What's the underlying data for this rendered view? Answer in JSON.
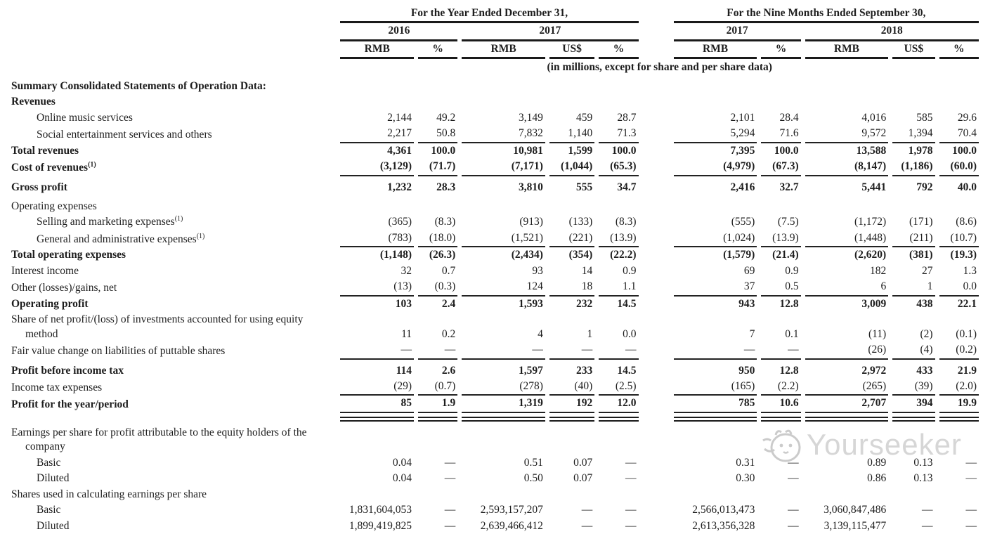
{
  "table": {
    "header": {
      "period_groups": [
        {
          "label": "For the Year Ended December 31,",
          "years": [
            {
              "label": "2016",
              "cols": [
                "RMB",
                "%"
              ]
            },
            {
              "label": "2017",
              "cols": [
                "RMB",
                "US$",
                "%"
              ]
            }
          ]
        },
        {
          "label": "For the Nine Months Ended September 30,",
          "years": [
            {
              "label": "2017",
              "cols": [
                "RMB",
                "%"
              ]
            },
            {
              "label": "2018",
              "cols": [
                "RMB",
                "US$",
                "%"
              ]
            }
          ]
        }
      ],
      "note": "(in millions, except for share and per share data)"
    },
    "rows": [
      {
        "id": "summary-title",
        "label": "Summary Consolidated Statements of Operation Data:",
        "bold": true,
        "values": []
      },
      {
        "id": "revenues-heading",
        "label": "Revenues",
        "bold": true,
        "values": []
      },
      {
        "id": "online-music-services",
        "label": "Online music services",
        "indent": true,
        "values": [
          "2,144",
          "49.2",
          "3,149",
          "459",
          "28.7",
          "2,101",
          "28.4",
          "4,016",
          "585",
          "29.6"
        ]
      },
      {
        "id": "social-entertainment-services",
        "label": "Social entertainment services and others",
        "indent": true,
        "rule": "single",
        "values": [
          "2,217",
          "50.8",
          "7,832",
          "1,140",
          "71.3",
          "5,294",
          "71.6",
          "9,572",
          "1,394",
          "70.4"
        ]
      },
      {
        "id": "total-revenues",
        "label": "Total revenues",
        "bold": true,
        "values": [
          "4,361",
          "100.0",
          "10,981",
          "1,599",
          "100.0",
          "7,395",
          "100.0",
          "13,588",
          "1,978",
          "100.0"
        ]
      },
      {
        "id": "cost-of-revenues",
        "label": "Cost of revenues",
        "sup": "(1)",
        "bold": true,
        "rule": "single",
        "values": [
          "(3,129)",
          "(71.7)",
          "(7,171)",
          "(1,044)",
          "(65.3)",
          "(4,979)",
          "(67.3)",
          "(8,147)",
          "(1,186)",
          "(60.0)"
        ]
      },
      {
        "id": "gross-profit",
        "label": "Gross profit",
        "bold": true,
        "gap": true,
        "values": [
          "1,232",
          "28.3",
          "3,810",
          "555",
          "34.7",
          "2,416",
          "32.7",
          "5,441",
          "792",
          "40.0"
        ]
      },
      {
        "id": "operating-expenses-heading",
        "label": "Operating expenses",
        "gap": true,
        "values": []
      },
      {
        "id": "selling-marketing-expenses",
        "label": "Selling and marketing expenses",
        "sup": "(1)",
        "indent": true,
        "values": [
          "(365)",
          "(8.3)",
          "(913)",
          "(133)",
          "(8.3)",
          "(555)",
          "(7.5)",
          "(1,172)",
          "(171)",
          "(8.6)"
        ]
      },
      {
        "id": "general-admin-expenses",
        "label": "General and administrative expenses",
        "sup": "(1)",
        "indent": true,
        "rule": "single",
        "values": [
          "(783)",
          "(18.0)",
          "(1,521)",
          "(221)",
          "(13.9)",
          "(1,024)",
          "(13.9)",
          "(1,448)",
          "(211)",
          "(10.7)"
        ]
      },
      {
        "id": "total-operating-expenses",
        "label": "Total operating expenses",
        "bold": true,
        "values": [
          "(1,148)",
          "(26.3)",
          "(2,434)",
          "(354)",
          "(22.2)",
          "(1,579)",
          "(21.4)",
          "(2,620)",
          "(381)",
          "(19.3)"
        ]
      },
      {
        "id": "interest-income",
        "label": "Interest income",
        "values": [
          "32",
          "0.7",
          "93",
          "14",
          "0.9",
          "69",
          "0.9",
          "182",
          "27",
          "1.3"
        ]
      },
      {
        "id": "other-losses-gains",
        "label": "Other (losses)/gains, net",
        "rule": "single",
        "values": [
          "(13)",
          "(0.3)",
          "124",
          "18",
          "1.1",
          "37",
          "0.5",
          "6",
          "1",
          "0.0"
        ]
      },
      {
        "id": "operating-profit",
        "label": "Operating profit",
        "bold": true,
        "values": [
          "103",
          "2.4",
          "1,593",
          "232",
          "14.5",
          "943",
          "12.8",
          "3,009",
          "438",
          "22.1"
        ]
      },
      {
        "id": "share-net-profit-equity-method",
        "label": "Share of net profit/(loss) of investments accounted for using equity method",
        "hang": true,
        "values": [
          "11",
          "0.2",
          "4",
          "1",
          "0.0",
          "7",
          "0.1",
          "(11)",
          "(2)",
          "(0.1)"
        ]
      },
      {
        "id": "fair-value-change-puttable-shares",
        "label": "Fair value change on liabilities of puttable shares",
        "rule": "single",
        "values": [
          "—",
          "—",
          "—",
          "—",
          "—",
          "—",
          "—",
          "(26)",
          "(4)",
          "(0.2)"
        ]
      },
      {
        "id": "profit-before-income-tax",
        "label": "Profit before income tax",
        "bold": true,
        "gap": true,
        "values": [
          "114",
          "2.6",
          "1,597",
          "233",
          "14.5",
          "950",
          "12.8",
          "2,972",
          "433",
          "21.9"
        ]
      },
      {
        "id": "income-tax-expenses",
        "label": "Income tax expenses",
        "rule": "single",
        "values": [
          "(29)",
          "(0.7)",
          "(278)",
          "(40)",
          "(2.5)",
          "(165)",
          "(2.2)",
          "(265)",
          "(39)",
          "(2.0)"
        ]
      },
      {
        "id": "profit-for-year-period",
        "label": "Profit for the year/period",
        "bold": true,
        "rule": "double",
        "values": [
          "85",
          "1.9",
          "1,319",
          "192",
          "12.0",
          "785",
          "10.6",
          "2,707",
          "394",
          "19.9"
        ]
      },
      {
        "id": "eps-heading",
        "label": "Earnings per share for profit attributable to the equity holders of the company",
        "hang": true,
        "gap": true,
        "values": []
      },
      {
        "id": "eps-basic",
        "label": "Basic",
        "indent": true,
        "values": [
          "0.04",
          "—",
          "0.51",
          "0.07",
          "—",
          "0.31",
          "—",
          "0.89",
          "0.13",
          "—"
        ]
      },
      {
        "id": "eps-diluted",
        "label": "Diluted",
        "indent": true,
        "values": [
          "0.04",
          "—",
          "0.50",
          "0.07",
          "—",
          "0.30",
          "—",
          "0.86",
          "0.13",
          "—"
        ]
      },
      {
        "id": "shares-heading",
        "label": "Shares used in calculating earnings per share",
        "values": []
      },
      {
        "id": "shares-basic",
        "label": "Basic",
        "indent": true,
        "values": [
          "1,831,604,053",
          "—",
          "2,593,157,207",
          "—",
          "—",
          "2,566,013,473",
          "—",
          "3,060,847,486",
          "—",
          "—"
        ]
      },
      {
        "id": "shares-diluted",
        "label": "Diluted",
        "indent": true,
        "values": [
          "1,899,419,825",
          "—",
          "2,639,466,412",
          "—",
          "—",
          "2,613,356,328",
          "—",
          "3,139,115,477",
          "—",
          "—"
        ]
      }
    ]
  },
  "watermark": {
    "text": "Yourseeker"
  }
}
